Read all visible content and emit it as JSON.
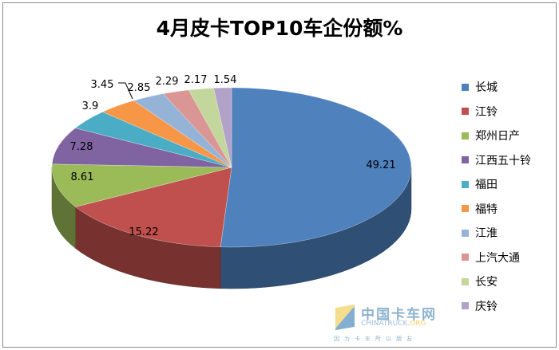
{
  "chart_data": {
    "type": "pie",
    "style": "3d",
    "title": "4月皮卡TOP10车企份额%",
    "categories": [
      "长城",
      "江铃",
      "郑州日产",
      "江西五十铃",
      "福田",
      "福特",
      "江淮",
      "上汽大通",
      "长安",
      "庆铃"
    ],
    "values": [
      49.21,
      15.22,
      8.61,
      7.28,
      3.9,
      3.45,
      2.85,
      2.29,
      2.17,
      1.54
    ],
    "data_labels": [
      "49.21",
      "15.22",
      "8.61",
      "7.28",
      "3.9",
      "3.45",
      "2.85",
      "2.29",
      "2.17",
      "1.54"
    ],
    "colors": [
      "#4F81BD",
      "#C0504D",
      "#9BBB59",
      "#8064A2",
      "#4BACC6",
      "#F79646",
      "#95B3D7",
      "#D99694",
      "#C3D69B",
      "#B2A2C7"
    ],
    "legend_position": "right"
  },
  "watermark": {
    "name": "中国卡车网",
    "domain": "CHINATRUCK.",
    "tld": "ORG",
    "slogan": "因为卡车所以朋友"
  }
}
